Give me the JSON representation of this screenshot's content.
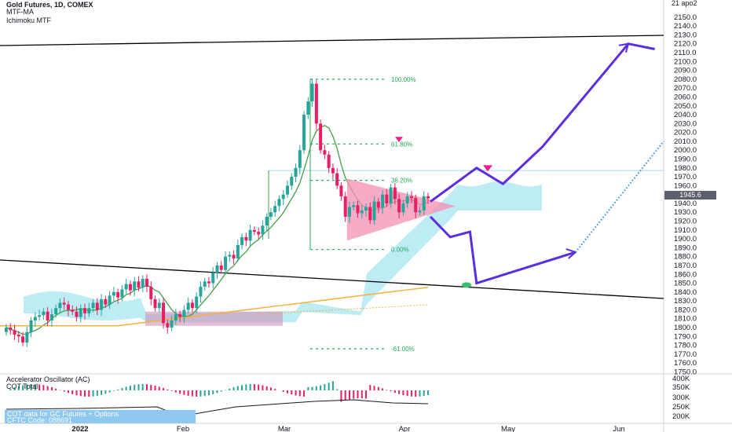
{
  "header": {
    "title": "Gold Futures, 1D, COMEX",
    "indicator_1": "MTF-MA",
    "indicator_2": "Ichimoku MTF"
  },
  "oscillator": {
    "title": "Accelerator Oscillator (AC)",
    "subtitle": "COT Total",
    "cot_note_line1": "COT data for GC Futures + Options",
    "cot_note_line2": "CFTC Code: 088691"
  },
  "current_price_label": "1945.6",
  "colors": {
    "up": "#26a69a",
    "down": "#e91e63",
    "forecast": "#5b2de0",
    "fib": "#22a95b",
    "triangle": "#f48fb1",
    "cloud": "#a7e6f1",
    "cloud_pink": "#ce93b8",
    "ma_green": "#43a047",
    "ma_orange": "#f5b041",
    "dotted_blue": "#2d8fe0",
    "price_tag": "#5d606b"
  },
  "chart_data": {
    "type": "candlestick",
    "title": "Gold Futures, 1D, COMEX",
    "y_axis": {
      "ylim": [
        1746,
        2172
      ],
      "ticks": [
        2150,
        2140,
        2130,
        2120,
        2110,
        2100,
        2090,
        2080,
        2070,
        2060,
        2050,
        2040,
        2030,
        2020,
        2010,
        2000,
        1990,
        1980,
        1970,
        1960,
        1950,
        1940,
        1930,
        1920,
        1910,
        1900,
        1890,
        1880,
        1870,
        1860,
        1850,
        1840,
        1830,
        1820,
        1810,
        1800,
        1790,
        1780,
        1770,
        1760,
        1750
      ],
      "tick_labels": [
        "2150.0",
        "2140.0",
        "2130.0",
        "2120.0",
        "2110.0",
        "2100.0",
        "2090.0",
        "2080.0",
        "2070.0",
        "2060.0",
        "2050.0",
        "2040.0",
        "2030.0",
        "2020.0",
        "2010.0",
        "2000.0",
        "1990.0",
        "1980.0",
        "1970.0",
        "1960.0",
        "1950.0",
        "1940.0",
        "1930.0",
        "1920.0",
        "1910.0",
        "1900.0",
        "1890.0",
        "1880.0",
        "1870.0",
        "1860.0",
        "1850.0",
        "1840.0",
        "1830.0",
        "1820.0",
        "1810.0",
        "1800.0",
        "1790.0",
        "1780.0",
        "1770.0",
        "1760.0",
        "1750.0"
      ],
      "top_label": "21 apo2"
    },
    "x_axis": {
      "labels": [
        "2022",
        "Feb",
        "Mar",
        "Apr",
        "May",
        "Jun"
      ]
    },
    "oscillator_axis": {
      "tick_labels": [
        "400K",
        "350K",
        "300K",
        "250K",
        "200K"
      ]
    },
    "fib_levels": [
      {
        "label": "100.00%",
        "value": 2080
      },
      {
        "label": "61.80%",
        "value": 2007
      },
      {
        "label": "38.20%",
        "value": 1966
      },
      {
        "label": "0.00%",
        "value": 1888
      },
      {
        "label": "-61.00%",
        "value": 1776
      }
    ],
    "closes": [
      1800,
      1797,
      1792,
      1790,
      1783,
      1795,
      1808,
      1812,
      1814,
      1818,
      1808,
      1815,
      1822,
      1828,
      1826,
      1820,
      1818,
      1812,
      1822,
      1816,
      1822,
      1828,
      1820,
      1832,
      1826,
      1836,
      1840,
      1834,
      1843,
      1849,
      1842,
      1852,
      1845,
      1855,
      1846,
      1832,
      1822,
      1828,
      1805,
      1800,
      1808,
      1815,
      1812,
      1820,
      1828,
      1822,
      1835,
      1846,
      1852,
      1850,
      1862,
      1870,
      1865,
      1880,
      1882,
      1878,
      1893,
      1902,
      1898,
      1910,
      1908,
      1905,
      1915,
      1925,
      1930,
      1937,
      1945,
      1950,
      1960,
      1970,
      1980,
      2000,
      2040,
      2055,
      2075,
      2030,
      2000,
      1995,
      1980,
      1974,
      1960,
      1948,
      1925,
      1936,
      1938,
      1929,
      1932,
      1936,
      1921,
      1942,
      1935,
      1950,
      1940,
      1958,
      1945,
      1930,
      1940,
      1948,
      1946,
      1930,
      1932,
      1948,
      1945.6
    ],
    "forecast_path": [
      [
        0,
        1942
      ],
      [
        7,
        1980
      ],
      [
        11,
        1962
      ],
      [
        17,
        2004
      ],
      [
        30,
        2120
      ],
      [
        34,
        2114
      ]
    ],
    "forecast_alt": [
      [
        0,
        1925
      ],
      [
        3,
        1902
      ],
      [
        6,
        1908
      ],
      [
        7,
        1850
      ],
      [
        22,
        1885
      ]
    ]
  }
}
